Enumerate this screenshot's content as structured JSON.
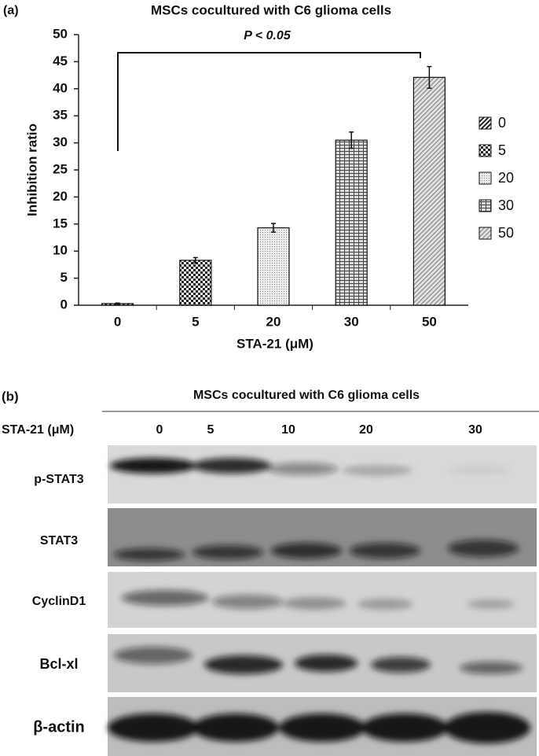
{
  "chart_data": {
    "type": "bar",
    "panel_label": "(a)",
    "title": "MSCs cocultured with C6 glioma cells",
    "x_label": "STA-21 (μM)",
    "y_label": "Inhibition ratio",
    "annotation": "P < 0.05",
    "categories": [
      "0",
      "5",
      "20",
      "30",
      "50"
    ],
    "values": [
      0.3,
      8.3,
      14.3,
      30.5,
      42.1
    ],
    "errors": [
      0.1,
      0.5,
      0.8,
      1.5,
      2.0
    ],
    "ylim": [
      0,
      50
    ],
    "yticks": [
      0,
      5,
      10,
      15,
      20,
      25,
      30,
      35,
      40,
      45,
      50
    ],
    "legend": "right",
    "grid": false
  },
  "blot": {
    "panel_label": "(b)",
    "title": "MSCs cocultured with C6 glioma cells",
    "dose_label": "STA-21 (μM)",
    "doses": [
      "0",
      "5",
      "10",
      "20",
      "30"
    ],
    "rows": [
      "p-STAT3",
      "STAT3",
      "CyclinD1",
      "Bcl-xl",
      "β-actin"
    ]
  }
}
